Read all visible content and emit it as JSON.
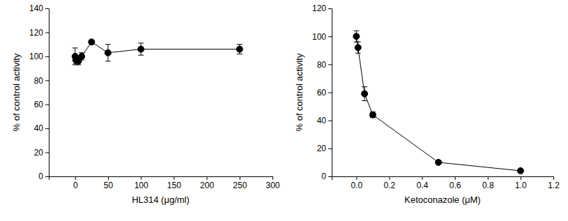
{
  "chart_data": [
    {
      "type": "line",
      "x_label": "HL314 (μg/ml)",
      "y_label": "% of control activity",
      "x": [
        0,
        1,
        5,
        10,
        25,
        50,
        100,
        250
      ],
      "values": [
        100,
        97,
        96,
        100,
        112,
        103,
        106,
        106
      ],
      "errors": [
        7,
        3,
        3,
        3,
        1,
        7,
        5,
        4
      ],
      "color": "#000000",
      "marker": "circle",
      "xlim": [
        -40,
        300
      ],
      "xticks": [
        0,
        50,
        100,
        150,
        200,
        250,
        300
      ],
      "ylim": [
        0,
        140
      ],
      "yticks": [
        0,
        20,
        40,
        60,
        80,
        100,
        120,
        140
      ]
    },
    {
      "type": "line",
      "x_label": "Ketoconazole (μM)",
      "y_label": "% of control activity",
      "x": [
        0,
        0.01,
        0.05,
        0.1,
        0.5,
        1.0
      ],
      "values": [
        100,
        92,
        59,
        44,
        10,
        4
      ],
      "errors": [
        4,
        4,
        5,
        2,
        1,
        1
      ],
      "color": "#000000",
      "marker": "circle",
      "xlim": [
        -0.15,
        1.2
      ],
      "xticks": [
        {
          "value": 0,
          "label": "0.0"
        },
        {
          "value": 0.2,
          "label": "0.2"
        },
        {
          "value": 0.4,
          "label": "0.4"
        },
        {
          "value": 0.6,
          "label": "0.6"
        },
        {
          "value": 0.8,
          "label": "0.8"
        },
        {
          "value": 1.0,
          "label": "1.0"
        },
        {
          "value": 1.2,
          "label": "1.2"
        }
      ],
      "ylim": [
        0,
        120
      ],
      "yticks": [
        0,
        20,
        40,
        60,
        80,
        100,
        120
      ]
    }
  ]
}
